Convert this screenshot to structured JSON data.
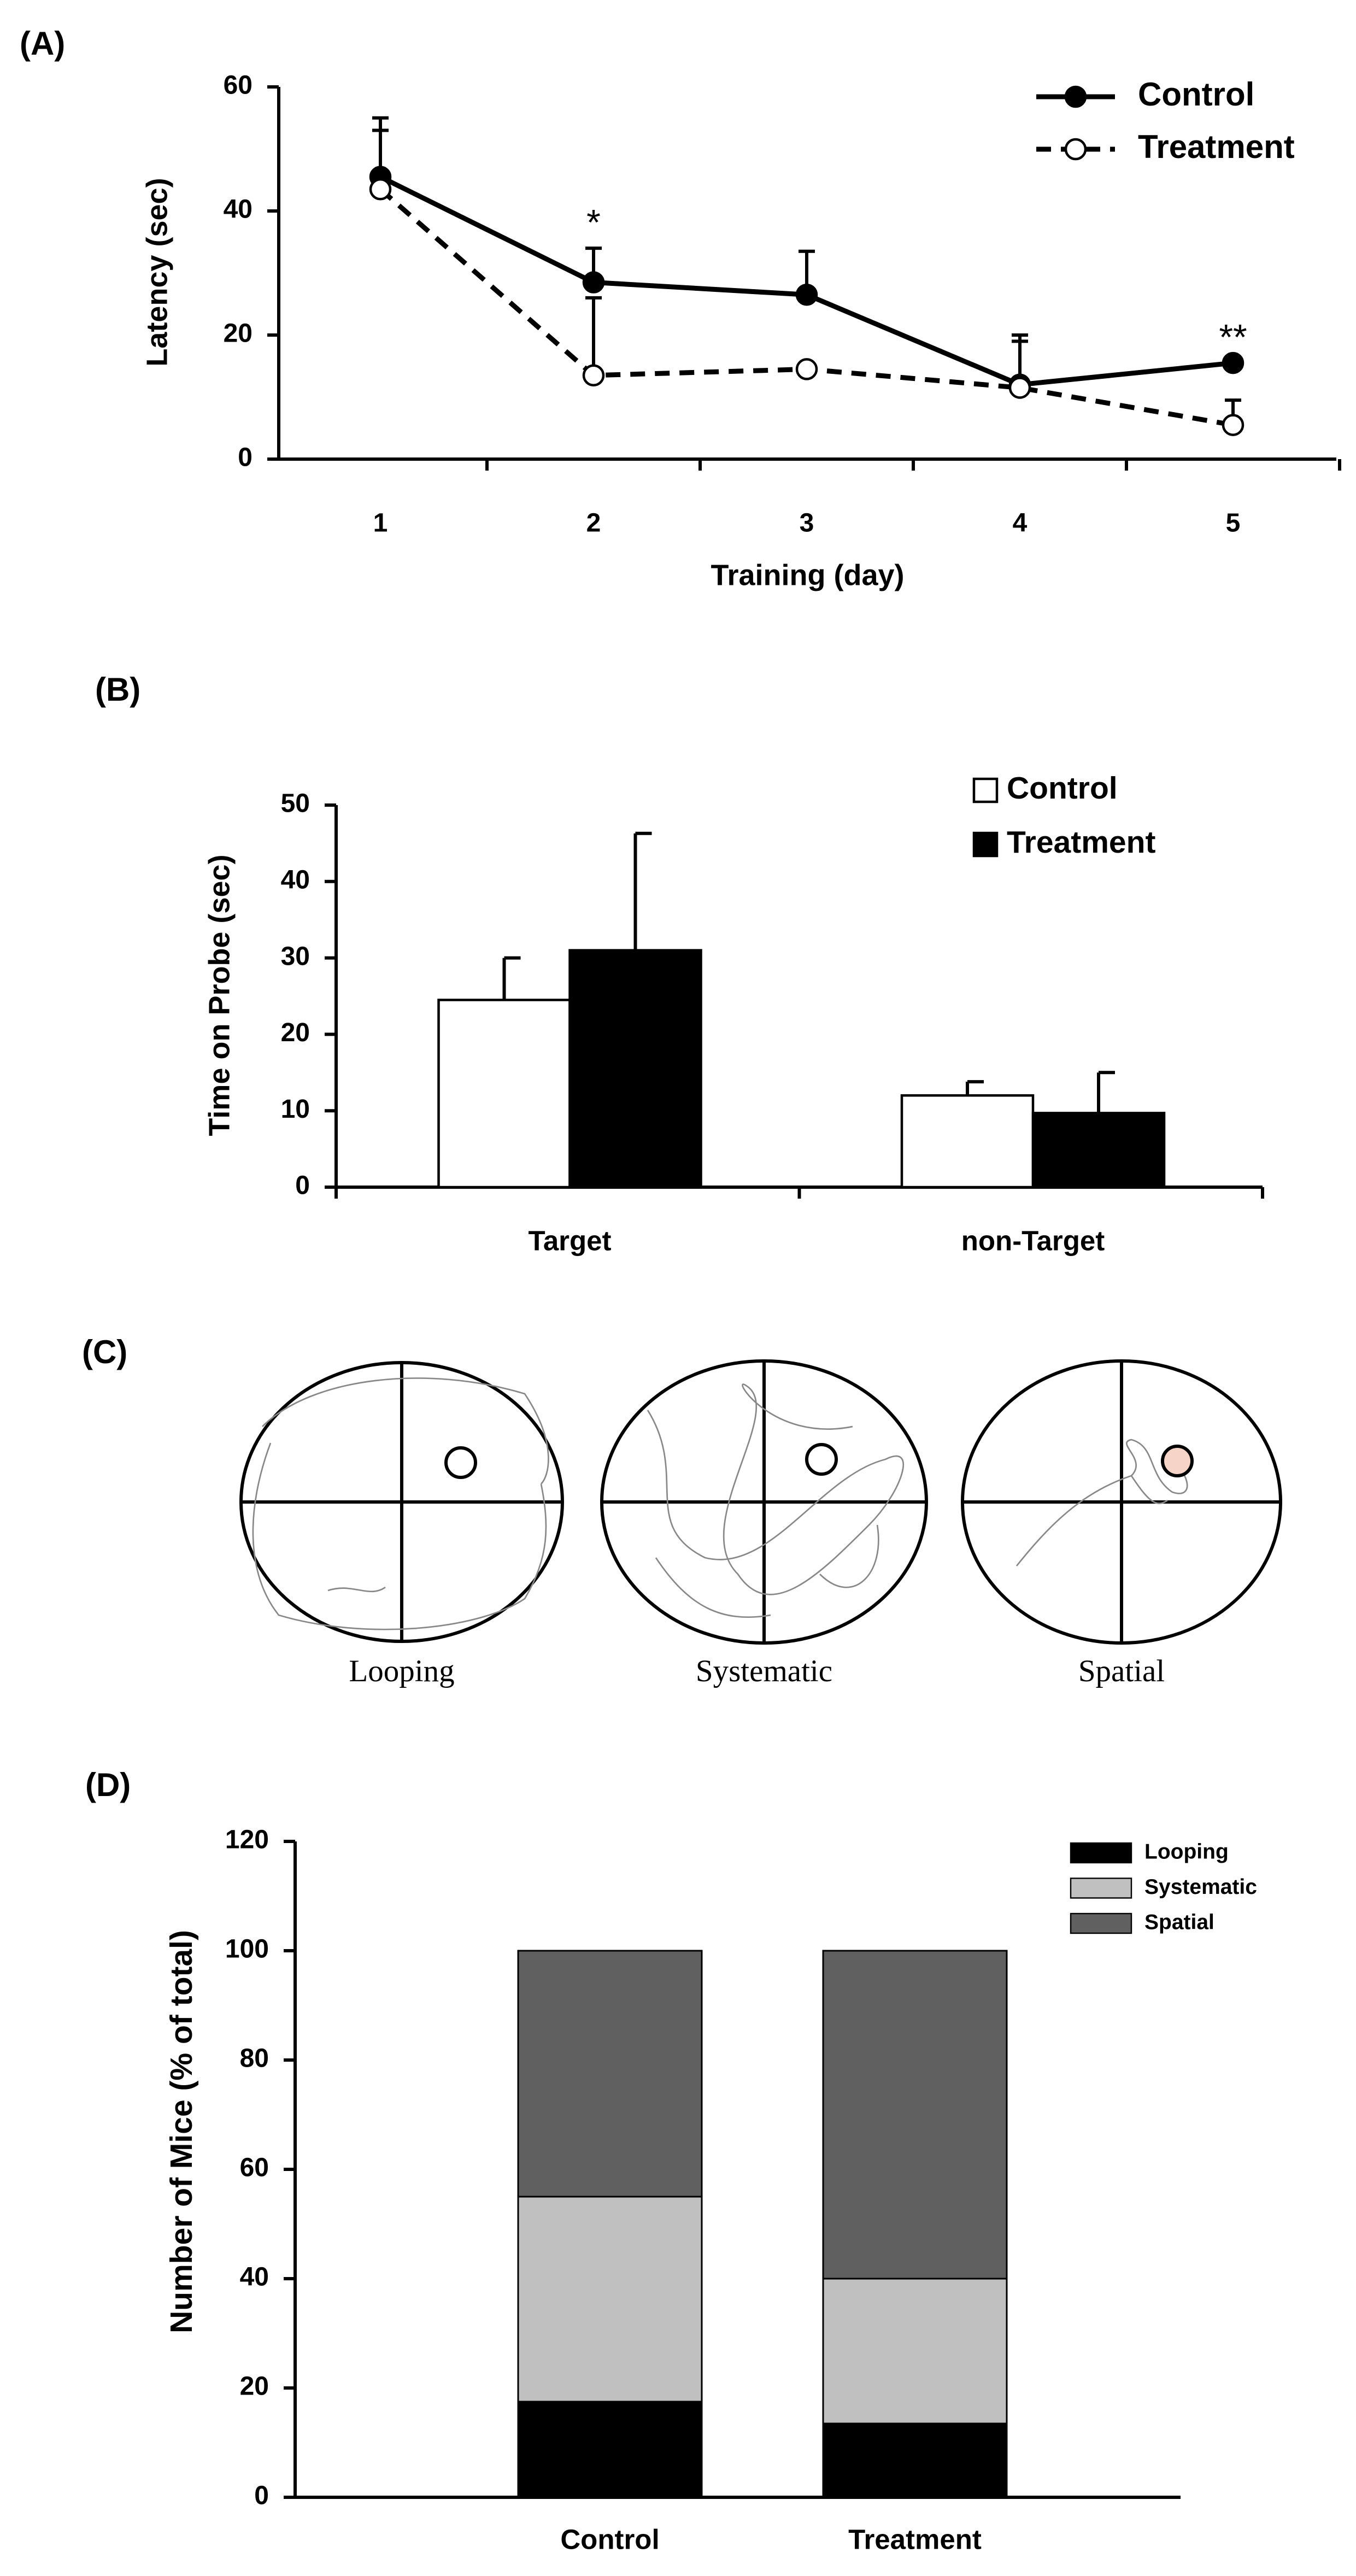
{
  "chart_data": [
    {
      "type": "line",
      "label": "(A)",
      "ylabel": "Latency (sec)",
      "xlabel": "Training (day)",
      "categories": [
        "1",
        "2",
        "3",
        "4",
        "5"
      ],
      "series": [
        {
          "name": "Control",
          "color": "#000000",
          "style": "solid",
          "marker": "filled",
          "values": [
            45.5,
            28.5,
            26.5,
            12,
            15.5
          ],
          "errors": [
            9.5,
            5.5,
            7,
            8,
            0
          ]
        },
        {
          "name": "Treatment",
          "color": "#000000",
          "style": "dashed",
          "marker": "open",
          "values": [
            43.5,
            13.5,
            14.5,
            11.5,
            5.5
          ],
          "errors": [
            9.5,
            12.5,
            0,
            7.5,
            4
          ]
        }
      ],
      "annotations": [
        {
          "text": "*",
          "x": "2"
        },
        {
          "text": "**",
          "x": "5"
        }
      ],
      "ylim": [
        0,
        60
      ],
      "yticks": [
        0,
        20,
        40,
        60
      ],
      "legend": "top-right"
    },
    {
      "type": "bar",
      "label": "(B)",
      "ylabel": "Time on Probe (sec)",
      "categories": [
        "Target",
        "non-Target"
      ],
      "series": [
        {
          "name": "Control",
          "color": "#ffffff",
          "values": [
            24.5,
            12
          ],
          "errors": [
            5.5,
            1.8
          ]
        },
        {
          "name": "Treatment",
          "color": "#000000",
          "values": [
            31,
            9.7
          ],
          "errors": [
            15.3,
            5.3
          ]
        }
      ],
      "ylim": [
        0,
        50
      ],
      "yticks": [
        0,
        10,
        20,
        30,
        40,
        50
      ],
      "legend": "top-right"
    },
    {
      "type": "stacked_bar",
      "label": "(D)",
      "ylabel": "Number of Mice (% of total)",
      "categories": [
        "Control",
        "Treatment"
      ],
      "series": [
        {
          "name": "Looping",
          "color": "#000000",
          "values": [
            17.5,
            13.5
          ]
        },
        {
          "name": "Systematic",
          "color": "#c0c0c0",
          "values": [
            37.5,
            26.5
          ]
        },
        {
          "name": "Spatial",
          "color": "#606060",
          "values": [
            45,
            60
          ]
        }
      ],
      "ylim": [
        0,
        120
      ],
      "yticks": [
        0,
        20,
        40,
        60,
        80,
        100,
        120
      ],
      "legend": "top-right"
    }
  ],
  "diagram": {
    "label": "(C)",
    "captions": [
      "Looping",
      "Systematic",
      "Spatial"
    ]
  }
}
